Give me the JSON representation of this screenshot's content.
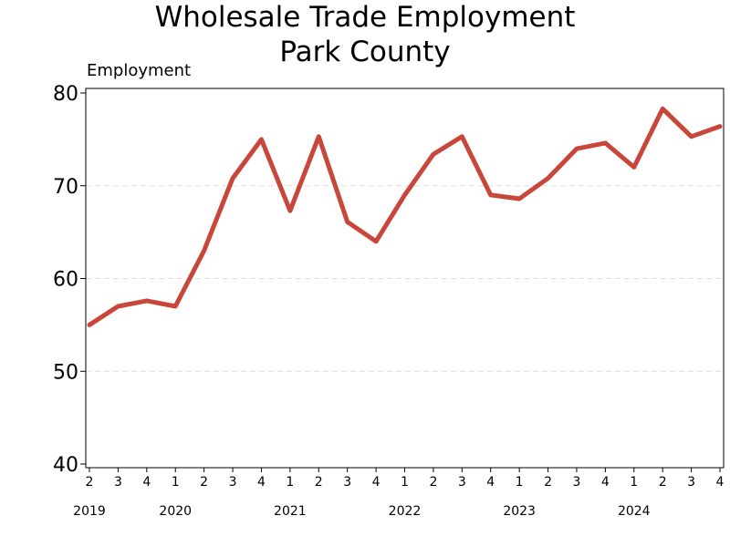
{
  "chart_data": {
    "type": "line",
    "title": "Wholesale Trade Employment",
    "subtitle": "Park County",
    "ylabel": "Employment",
    "xlabel": "",
    "ylim": [
      40,
      80
    ],
    "yticks": [
      40,
      50,
      60,
      70,
      80
    ],
    "grid": "horizontal-dashed",
    "quarters": [
      "2",
      "3",
      "4",
      "1",
      "2",
      "3",
      "4",
      "1",
      "2",
      "3",
      "4",
      "1",
      "2",
      "3",
      "4",
      "1",
      "2",
      "3",
      "4",
      "1",
      "2",
      "3",
      "4"
    ],
    "years": [
      {
        "label": "2019",
        "quarter_index": 0
      },
      {
        "label": "2020",
        "quarter_index": 3
      },
      {
        "label": "2021",
        "quarter_index": 7
      },
      {
        "label": "2022",
        "quarter_index": 11
      },
      {
        "label": "2023",
        "quarter_index": 15
      },
      {
        "label": "2024",
        "quarter_index": 19
      }
    ],
    "series": [
      {
        "color": "#c8473a",
        "values": [
          55.0,
          57.0,
          57.6,
          57.0,
          63.0,
          70.8,
          75.0,
          67.3,
          75.3,
          66.1,
          64.0,
          69.0,
          73.4,
          75.3,
          69.0,
          68.6,
          70.8,
          74.0,
          74.6,
          72.0,
          78.3,
          75.3,
          76.4
        ]
      }
    ]
  }
}
